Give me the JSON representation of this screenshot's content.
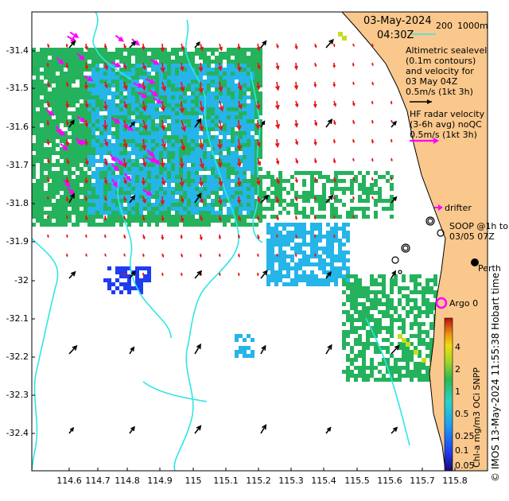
{
  "map": {
    "title_date": "03-May-2024",
    "title_time": "04:30Z",
    "isobath_labels": [
      "200",
      "1000m"
    ],
    "altimetry_legend": [
      "Altimetric sealevel",
      "(0.1m contours)",
      "and velocity for",
      "03 May 04Z",
      "0.5m/s (1kt 3h)"
    ],
    "hf_legend": [
      "HF radar velocity",
      "(3-6h avg) noQC",
      "0.5m/s (1kt 3h)"
    ],
    "drifter_label": "drifter",
    "soop_label": [
      "SOOP @1h to",
      "03/05 07Z"
    ],
    "argo_label": "Argo 0",
    "city_label": "Perth",
    "timestamp_credit": "© IMOS 13-May-2024 11:55:38 Hobart time",
    "colorbar_title": "Chl-a mg/m3 OCi SNPP",
    "colorbar_ticks": [
      "4",
      "2",
      "1",
      "0.5",
      "0.25",
      "0.1",
      "0.05"
    ],
    "lat_ticks": [
      "-31.4",
      "-31.5",
      "-31.6",
      "-31.7",
      "-31.8",
      "-31.9",
      "-32",
      "-32.1",
      "-32.2",
      "-32.3",
      "-32.4"
    ],
    "lon_ticks": [
      "114.6",
      "114.7",
      "114.8",
      "114.9",
      "115",
      "115.1",
      "115.2",
      "115.3",
      "115.4",
      "115.5",
      "115.6",
      "115.7",
      "115.8"
    ],
    "colors": {
      "land": "#fac88c",
      "hf_arrow": "#e61414",
      "drifter": "#ff00ff",
      "isobath": "#2ee6e6",
      "chl_high": "#d01c1c",
      "chl_mid": "#25b25c",
      "chl_low": "#25b5e8"
    }
  }
}
